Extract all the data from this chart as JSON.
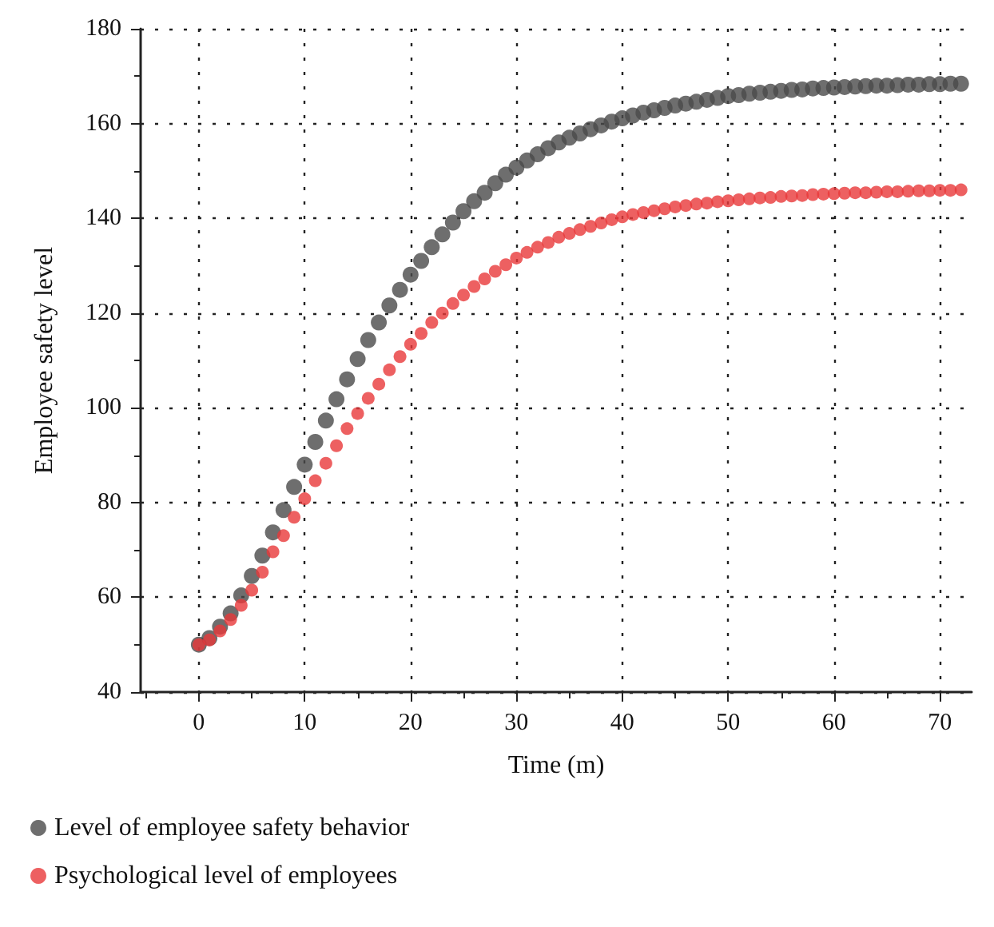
{
  "chart_data": {
    "type": "scatter",
    "xlabel": "Time (m)",
    "ylabel": "Employee safety level",
    "x": [
      0,
      1,
      2,
      3,
      4,
      5,
      6,
      7,
      8,
      9,
      10,
      11,
      12,
      13,
      14,
      15,
      16,
      17,
      18,
      19,
      20,
      21,
      22,
      23,
      24,
      25,
      26,
      27,
      28,
      29,
      30,
      31,
      32,
      33,
      34,
      35,
      36,
      37,
      38,
      39,
      40,
      41,
      42,
      43,
      44,
      45,
      46,
      47,
      48,
      49,
      50,
      51,
      52,
      53,
      54,
      55,
      56,
      57,
      58,
      59,
      60,
      61,
      62,
      63,
      64,
      65,
      66,
      67,
      68,
      69,
      70,
      71,
      72
    ],
    "series": [
      {
        "name": "Level of employee safety behavior",
        "color": "#4a4a4a",
        "values": [
          50,
          51.4,
          53.8,
          56.6,
          60.4,
          64.5,
          68.8,
          73.7,
          78.4,
          83.3,
          88,
          92.8,
          97.3,
          101.8,
          106,
          110.3,
          114.3,
          118,
          121.6,
          124.9,
          128.1,
          131,
          133.9,
          136.6,
          139.1,
          141.5,
          143.6,
          145.4,
          147.4,
          149.2,
          150.7,
          152.2,
          153.5,
          154.8,
          156,
          157,
          157.9,
          158.8,
          159.6,
          160.4,
          161.1,
          161.7,
          162.3,
          162.8,
          163.3,
          163.8,
          164.2,
          164.6,
          165,
          165.4,
          165.8,
          166,
          166.3,
          166.5,
          166.7,
          166.9,
          167.1,
          167.2,
          167.4,
          167.5,
          167.6,
          167.7,
          167.8,
          167.9,
          168,
          168,
          168.1,
          168.2,
          168.2,
          168.3,
          168.3,
          168.4,
          168.4
        ]
      },
      {
        "name": "Psychological level of employees",
        "color": "#e8383a",
        "values": [
          50,
          51,
          52.9,
          55.3,
          58.3,
          61.5,
          65.3,
          69.6,
          73,
          76.9,
          80.8,
          84.6,
          88.3,
          92,
          95.6,
          98.8,
          102,
          105,
          108,
          110.8,
          113.4,
          115.7,
          118,
          120,
          122,
          123.8,
          125.6,
          127.2,
          128.8,
          130.2,
          131.6,
          132.8,
          133.9,
          134.9,
          136,
          136.8,
          137.6,
          138.3,
          139,
          139.7,
          140.3,
          140.8,
          141.2,
          141.6,
          142,
          142.4,
          142.7,
          143,
          143.2,
          143.5,
          143.7,
          143.9,
          144.1,
          144.3,
          144.4,
          144.6,
          144.7,
          144.8,
          145,
          145.1,
          145.2,
          145.3,
          145.4,
          145.4,
          145.5,
          145.6,
          145.6,
          145.7,
          145.8,
          145.8,
          145.9,
          145.9,
          146
        ]
      }
    ],
    "xlim": [
      -5.5,
      73
    ],
    "xticks": [
      {
        "value": -5,
        "label": null
      },
      0,
      {
        "value": 5,
        "label": null
      },
      10,
      {
        "value": 15,
        "label": null
      },
      20,
      {
        "value": 25,
        "label": null
      },
      30,
      {
        "value": 35,
        "label": null
      },
      40,
      {
        "value": 45,
        "label": null
      },
      50,
      {
        "value": 55,
        "label": null
      },
      60,
      {
        "value": 65,
        "label": null
      },
      70
    ],
    "ylim": [
      40,
      180
    ],
    "yticks": [
      40,
      {
        "value": 50,
        "label": null
      },
      60,
      {
        "value": 70,
        "label": null
      },
      80,
      {
        "value": 90,
        "label": null
      },
      100,
      {
        "value": 110,
        "label": null
      },
      120,
      {
        "value": 130,
        "label": null
      },
      140,
      {
        "value": 150,
        "label": null
      },
      160,
      {
        "value": 170,
        "label": null
      },
      180
    ],
    "grid": true,
    "legend": "bottom left",
    "marker": "circle"
  }
}
